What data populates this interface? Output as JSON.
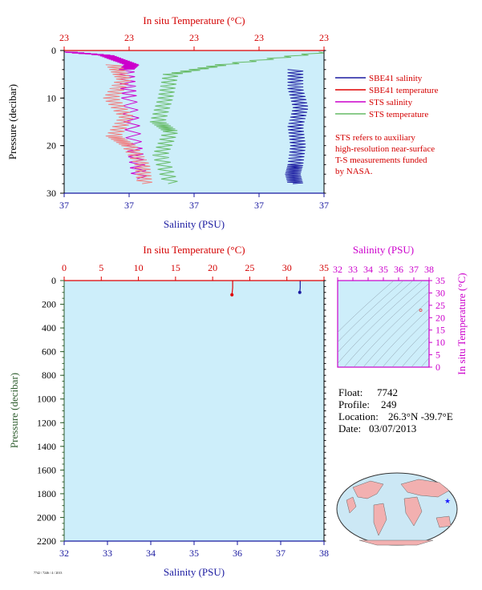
{
  "chart_data": [
    {
      "type": "line",
      "panel": "top-near-surface-profile",
      "top_axis_label": "In situ Temperature (°C)",
      "top_ticks": [
        "23",
        "23",
        "23",
        "23",
        "23"
      ],
      "bottom_axis_label": "Salinity (PSU)",
      "bottom_ticks": [
        "37",
        "37",
        "37",
        "37",
        "37"
      ],
      "left_axis_label": "Pressure (decibar)",
      "left_ticks": [
        "0",
        "10",
        "20",
        "30"
      ],
      "ylim": [
        0,
        30
      ],
      "y_inverted": true,
      "legend_position": "right",
      "legend": [
        {
          "name": "SBE41 salinity",
          "color": "#1a1aa0"
        },
        {
          "name": "SBE41 temperature",
          "color": "#e00000"
        },
        {
          "name": "STS salinity",
          "color": "#cc00cc"
        },
        {
          "name": "STS temperature",
          "color": "#66bb66"
        }
      ],
      "note": "STS refers to auxiliary high-resolution near-surface T-S measurements funded by NASA.",
      "note_lines": [
        "STS refers to auxiliary",
        "high-resolution near-surface",
        "T-S measurements funded",
        "by NASA."
      ],
      "series": [
        {
          "name": "SBE41 salinity",
          "color": "#1a1aa0",
          "x_frac": [
            0.88,
            0.88,
            0.9,
            0.88,
            0.89,
            0.88,
            0.87,
            0.88
          ],
          "pressure": [
            4,
            8,
            12,
            16,
            20,
            24,
            26,
            28
          ]
        },
        {
          "name": "STS salinity",
          "color": "#cc00cc",
          "x_frac": [
            0.0,
            0.15,
            0.2,
            0.25,
            0.23,
            0.24,
            0.26,
            0.28
          ],
          "pressure": [
            0.3,
            1,
            2,
            3,
            4,
            10,
            20,
            27
          ]
        },
        {
          "name": "STS temperature (salmon)",
          "color": "#f08080",
          "x_frac": [
            0.18,
            0.22,
            0.17,
            0.23,
            0.18,
            0.24,
            0.29,
            0.3
          ],
          "pressure": [
            3,
            6,
            10,
            14,
            18,
            20,
            24,
            28
          ]
        },
        {
          "name": "STS temperature",
          "color": "#66bb66",
          "x_frac": [
            1.0,
            0.6,
            0.4,
            0.38,
            0.35,
            0.4,
            0.36,
            0.4
          ],
          "pressure": [
            0.3,
            3,
            5,
            10,
            15,
            17,
            22,
            28
          ]
        }
      ]
    },
    {
      "type": "line",
      "panel": "bottom-full-profile",
      "top_axis_label": "In situ Temperature (°C)",
      "top_ticks": [
        "0",
        "5",
        "10",
        "15",
        "20",
        "25",
        "30",
        "35"
      ],
      "xlim_temperature": [
        0,
        35
      ],
      "bottom_axis_label": "Salinity (PSU)",
      "bottom_ticks": [
        "32",
        "33",
        "34",
        "35",
        "36",
        "37",
        "38"
      ],
      "xlim_salinity": [
        32,
        38
      ],
      "left_axis_label": "Pressure (decibar)",
      "left_ticks": [
        "0",
        "200",
        "400",
        "600",
        "800",
        "1000",
        "1200",
        "1400",
        "1600",
        "1800",
        "2000",
        "2200"
      ],
      "ylim": [
        0,
        2200
      ],
      "y_inverted": true,
      "series": [
        {
          "name": "SBE41 temperature",
          "color": "#e00000",
          "x": [
            22.7,
            22.7,
            22.6
          ],
          "pressure": [
            0,
            60,
            120
          ]
        },
        {
          "name": "SBE41 salinity",
          "color": "#1a1aa0",
          "x": [
            37.45,
            37.45,
            37.44
          ],
          "pressure": [
            0,
            60,
            100
          ]
        }
      ]
    },
    {
      "type": "scatter",
      "panel": "ts-diagram",
      "top_axis_label": "Salinity (PSU)",
      "top_ticks": [
        "32",
        "33",
        "34",
        "35",
        "36",
        "37",
        "38"
      ],
      "xlim": [
        32,
        38
      ],
      "right_axis_label": "In situ Temperature (°C)",
      "right_ticks": [
        "0",
        "5",
        "10",
        "15",
        "20",
        "25",
        "30",
        "35"
      ],
      "ylim": [
        0,
        35
      ],
      "points": [
        {
          "x": 37.45,
          "y": 23
        }
      ]
    }
  ],
  "info": {
    "float_label": "Float:",
    "float_value": "7742",
    "profile_label": "Profile:",
    "profile_value": "249",
    "location_label": "Location:",
    "location_value": "26.3°N  -39.7°E",
    "date_label": "Date:",
    "date_value": "03/07/2013"
  },
  "map": {
    "marker": "blue-star",
    "land_color": "#f2b0b0",
    "ocean_color": "#cce8f5"
  },
  "footer_small_text": "7742 / 7246 / 4 / 2013"
}
